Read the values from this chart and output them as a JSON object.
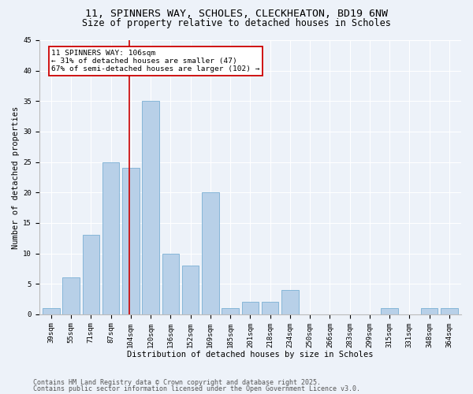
{
  "title1": "11, SPINNERS WAY, SCHOLES, CLECKHEATON, BD19 6NW",
  "title2": "Size of property relative to detached houses in Scholes",
  "xlabel": "Distribution of detached houses by size in Scholes",
  "ylabel": "Number of detached properties",
  "categories": [
    "39sqm",
    "55sqm",
    "71sqm",
    "87sqm",
    "104sqm",
    "120sqm",
    "136sqm",
    "152sqm",
    "169sqm",
    "185sqm",
    "201sqm",
    "218sqm",
    "234sqm",
    "250sqm",
    "266sqm",
    "283sqm",
    "299sqm",
    "315sqm",
    "331sqm",
    "348sqm",
    "364sqm"
  ],
  "values": [
    1,
    6,
    13,
    25,
    24,
    35,
    10,
    8,
    20,
    1,
    2,
    2,
    4,
    0,
    0,
    0,
    0,
    1,
    0,
    1,
    1
  ],
  "bar_color": "#b8d0e8",
  "bar_edge_color": "#7aafd4",
  "property_line_index": 4,
  "property_line_color": "#cc0000",
  "annotation_text": "11 SPINNERS WAY: 106sqm\n← 31% of detached houses are smaller (47)\n67% of semi-detached houses are larger (102) →",
  "annotation_box_color": "#cc0000",
  "ylim": [
    0,
    45
  ],
  "yticks": [
    0,
    5,
    10,
    15,
    20,
    25,
    30,
    35,
    40,
    45
  ],
  "footer1": "Contains HM Land Registry data © Crown copyright and database right 2025.",
  "footer2": "Contains public sector information licensed under the Open Government Licence v3.0.",
  "bg_color": "#edf2f9",
  "plot_bg_color": "#edf2f9",
  "grid_color": "#ffffff",
  "title_fontsize": 9.5,
  "subtitle_fontsize": 8.5,
  "axis_label_fontsize": 7.5,
  "tick_fontsize": 6.5,
  "annotation_fontsize": 6.8,
  "footer_fontsize": 6.0
}
